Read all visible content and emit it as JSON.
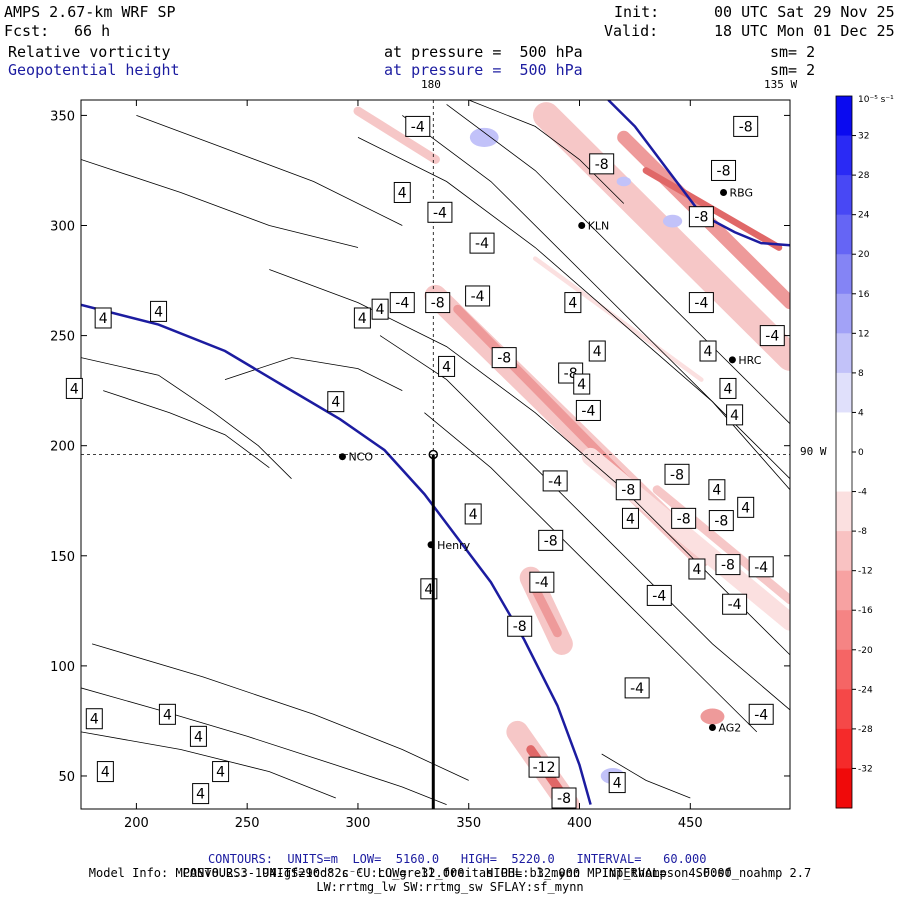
{
  "header": {
    "model": "AMPS 2.67-km WRF SP",
    "init_label": "Init:",
    "init_value": "00 UTC Sat 29 Nov 25",
    "fcst_label": "Fcst:",
    "fcst_value": "66 h",
    "valid_label": "Valid:",
    "valid_value": "18 UTC Mon 01 Dec 25",
    "field1_name": "Relative vorticity",
    "field1_level": "at pressure =  500 hPa",
    "field1_sm": "sm= 2",
    "field2_name": "Geopotential height",
    "field2_level": "at pressure =  500 hPa",
    "field2_sm": "sm= 2",
    "lon_180": "180",
    "lon_135w": "135 W",
    "lat_90w": "90 W"
  },
  "colorbar": {
    "unit": "10⁻⁵ s⁻¹",
    "labels": [
      "32",
      "28",
      "24",
      "20",
      "16",
      "12",
      "8",
      "4",
      "0",
      "-4",
      "-8",
      "-12",
      "-16",
      "-20",
      "-24",
      "-28",
      "-32"
    ],
    "colors": [
      "#0a0af0",
      "#2a2af5",
      "#4848f5",
      "#6565f5",
      "#8484f5",
      "#a2a2f7",
      "#c2c2f9",
      "#e0e0fb",
      "#ffffff",
      "#ffffff",
      "#fbe0e0",
      "#f9c2c2",
      "#f7a2a2",
      "#f58484",
      "#f56565",
      "#f54848",
      "#f52a2a",
      "#f00a0a"
    ]
  },
  "stations": [
    {
      "name": "NCO",
      "x": 293,
      "y": 195
    },
    {
      "name": "Henry",
      "x": 333,
      "y": 155
    },
    {
      "name": "KLN",
      "x": 401,
      "y": 300
    },
    {
      "name": "RBG",
      "x": 465,
      "y": 315
    },
    {
      "name": "HRC",
      "x": 469,
      "y": 239
    },
    {
      "name": "AG2",
      "x": 460,
      "y": 72
    }
  ],
  "contour_labels": [
    {
      "t": "-4",
      "x": 327,
      "y": 345
    },
    {
      "t": "4",
      "x": 320,
      "y": 315
    },
    {
      "t": "-4",
      "x": 337,
      "y": 306
    },
    {
      "t": "-4",
      "x": 356,
      "y": 292
    },
    {
      "t": "-8",
      "x": 410,
      "y": 328
    },
    {
      "t": "-8",
      "x": 465,
      "y": 325
    },
    {
      "t": "-8",
      "x": 455,
      "y": 304
    },
    {
      "t": "-8",
      "x": 475,
      "y": 345
    },
    {
      "t": "-4",
      "x": 320,
      "y": 265
    },
    {
      "t": "-8",
      "x": 336,
      "y": 265
    },
    {
      "t": "-4",
      "x": 354,
      "y": 268
    },
    {
      "t": "4",
      "x": 210,
      "y": 261
    },
    {
      "t": "4",
      "x": 185,
      "y": 258
    },
    {
      "t": "4",
      "x": 302,
      "y": 258
    },
    {
      "t": "4",
      "x": 310,
      "y": 262
    },
    {
      "t": "4",
      "x": 172,
      "y": 226
    },
    {
      "t": "4",
      "x": 290,
      "y": 220
    },
    {
      "t": "4",
      "x": 340,
      "y": 236
    },
    {
      "t": "-8",
      "x": 366,
      "y": 240
    },
    {
      "t": "-8",
      "x": 396,
      "y": 233
    },
    {
      "t": "4",
      "x": 397,
      "y": 265
    },
    {
      "t": "4",
      "x": 408,
      "y": 243
    },
    {
      "t": "4",
      "x": 401,
      "y": 228
    },
    {
      "t": "-4",
      "x": 455,
      "y": 265
    },
    {
      "t": "-4",
      "x": 487,
      "y": 250
    },
    {
      "t": "4",
      "x": 458,
      "y": 243
    },
    {
      "t": "4",
      "x": 467,
      "y": 226
    },
    {
      "t": "4",
      "x": 470,
      "y": 214
    },
    {
      "t": "-4",
      "x": 404,
      "y": 216
    },
    {
      "t": "-4",
      "x": 389,
      "y": 184
    },
    {
      "t": "-8",
      "x": 422,
      "y": 180
    },
    {
      "t": "-8",
      "x": 444,
      "y": 187
    },
    {
      "t": "4",
      "x": 462,
      "y": 180
    },
    {
      "t": "4",
      "x": 475,
      "y": 172
    },
    {
      "t": "-8",
      "x": 447,
      "y": 167
    },
    {
      "t": "-8",
      "x": 464,
      "y": 166
    },
    {
      "t": "4",
      "x": 423,
      "y": 167
    },
    {
      "t": "4",
      "x": 352,
      "y": 169
    },
    {
      "t": "-8",
      "x": 387,
      "y": 157
    },
    {
      "t": "-8",
      "x": 467,
      "y": 146
    },
    {
      "t": "-4",
      "x": 482,
      "y": 145
    },
    {
      "t": "4",
      "x": 453,
      "y": 144
    },
    {
      "t": "-4",
      "x": 436,
      "y": 132
    },
    {
      "t": "-4",
      "x": 383,
      "y": 138
    },
    {
      "t": "4",
      "x": 332,
      "y": 135
    },
    {
      "t": "-4",
      "x": 470,
      "y": 128
    },
    {
      "t": "-8",
      "x": 373,
      "y": 118
    },
    {
      "t": "-4",
      "x": 426,
      "y": 90
    },
    {
      "t": "-4",
      "x": 482,
      "y": 78
    },
    {
      "t": "4",
      "x": 181,
      "y": 76
    },
    {
      "t": "4",
      "x": 214,
      "y": 78
    },
    {
      "t": "4",
      "x": 228,
      "y": 68
    },
    {
      "t": "4",
      "x": 186,
      "y": 52
    },
    {
      "t": "4",
      "x": 238,
      "y": 52
    },
    {
      "t": "-12",
      "x": 384,
      "y": 54
    },
    {
      "t": "-8",
      "x": 393,
      "y": 40
    },
    {
      "t": "4",
      "x": 417,
      "y": 47
    },
    {
      "t": "4",
      "x": 229,
      "y": 42
    }
  ],
  "footer": {
    "line1_prefix": "CONTOURS:  UNITS=m  LOW=  5160.0",
    "line1_high": "HIGH=  5220.0",
    "line1_interval": "INTERVAL=   60.000",
    "line2_prefix": "CONTOURS:  UNITS=10⁻⁵ s⁻¹  LOW= -32.000",
    "line2_high": "HIGH=  32.000",
    "line2_interval": "INTERVAL=   4.0000",
    "line3": "Model Info: MPASv8.2.3-194-gf29cd82c CU:cu_grell_freitas PBL:bl_mynn MP:mp_thompson SF:sf_noahmp 2.7",
    "line4": "LW:rrtmg_lw SW:rrtmg_sw SFLAY:sf_mynn"
  },
  "chart_data": {
    "type": "contour",
    "title": "Relative vorticity / Geopotential height at 500 hPa",
    "xlim": [
      175,
      495
    ],
    "ylim": [
      35,
      357
    ],
    "x_ticks": [
      200,
      250,
      300,
      350,
      400,
      450
    ],
    "y_ticks": [
      50,
      100,
      150,
      200,
      250,
      300,
      350
    ],
    "vorticity_units": "10^-5 s^-1",
    "vorticity_low": -32.0,
    "vorticity_high": 32.0,
    "vorticity_interval": 4.0,
    "height_units": "m",
    "height_low": 5160.0,
    "height_high": 5220.0,
    "height_interval": 60.0,
    "height_contours": [
      {
        "value": 5160,
        "points": [
          [
            175,
            264
          ],
          [
            210,
            255
          ],
          [
            240,
            243
          ],
          [
            265,
            228
          ],
          [
            292,
            212
          ],
          [
            312,
            198
          ],
          [
            330,
            178
          ],
          [
            345,
            158
          ],
          [
            360,
            138
          ],
          [
            375,
            112
          ],
          [
            390,
            82
          ],
          [
            400,
            55
          ],
          [
            405,
            37
          ]
        ]
      },
      {
        "value": 5220,
        "points": [
          [
            413,
            357
          ],
          [
            425,
            345
          ],
          [
            440,
            325
          ],
          [
            455,
            305
          ],
          [
            470,
            297
          ],
          [
            482,
            292
          ],
          [
            495,
            291
          ]
        ]
      }
    ]
  }
}
